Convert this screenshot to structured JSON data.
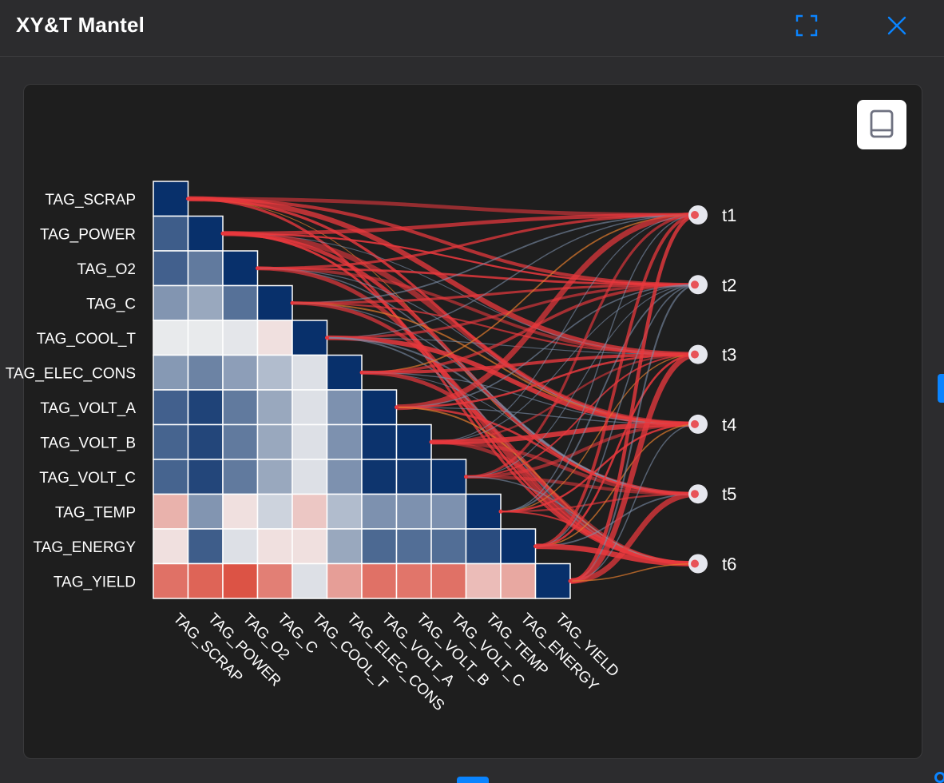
{
  "window": {
    "title": "XY&T Mantel",
    "fullscreen_icon": "fullscreen-icon",
    "close_icon": "close-icon",
    "accent_color": "#0a84ff"
  },
  "toolbar": {
    "book_icon": "book-icon"
  },
  "chart_data": {
    "type": "heatmap",
    "title": "",
    "variables": [
      "TAG_SCRAP",
      "TAG_POWER",
      "TAG_O2",
      "TAG_C",
      "TAG_COOL_T",
      "TAG_ELEC_CONS",
      "TAG_VOLT_A",
      "TAG_VOLT_B",
      "TAG_VOLT_C",
      "TAG_TEMP",
      "TAG_ENERGY",
      "TAG_YIELD"
    ],
    "targets": [
      "t1",
      "t2",
      "t3",
      "t4",
      "t5",
      "t6"
    ],
    "color_scale": {
      "negative": "#d7301f",
      "zero": "#f2f2f2",
      "positive": "#08306b",
      "range": [
        -1,
        1
      ]
    },
    "correlation_lower_triangle": [
      [
        1.0
      ],
      [
        0.72,
        1.0
      ],
      [
        0.7,
        0.55,
        1.0
      ],
      [
        0.4,
        0.3,
        0.6,
        1.0
      ],
      [
        0.02,
        0.02,
        0.03,
        -0.05,
        1.0
      ],
      [
        0.38,
        0.5,
        0.35,
        0.2,
        0.05,
        1.0
      ],
      [
        0.7,
        0.88,
        0.55,
        0.3,
        0.05,
        0.42,
        1.0
      ],
      [
        0.68,
        0.86,
        0.55,
        0.3,
        0.05,
        0.42,
        0.98,
        1.0
      ],
      [
        0.68,
        0.86,
        0.55,
        0.3,
        0.05,
        0.42,
        0.97,
        0.96,
        1.0
      ],
      [
        -0.25,
        0.4,
        -0.05,
        0.1,
        -0.15,
        0.2,
        0.42,
        0.42,
        0.42,
        1.0
      ],
      [
        -0.05,
        0.72,
        0.05,
        -0.05,
        -0.05,
        0.3,
        0.65,
        0.62,
        0.62,
        0.82,
        1.0
      ],
      [
        -0.6,
        -0.68,
        -0.78,
        -0.52,
        0.05,
        -0.35,
        -0.6,
        -0.58,
        -0.6,
        -0.2,
        -0.3,
        1.0
      ]
    ],
    "links_strong_color": "#e8383d",
    "links_mid_color": "#e07b2c",
    "links_weak_color": "#7b8ea8",
    "grid": false
  }
}
